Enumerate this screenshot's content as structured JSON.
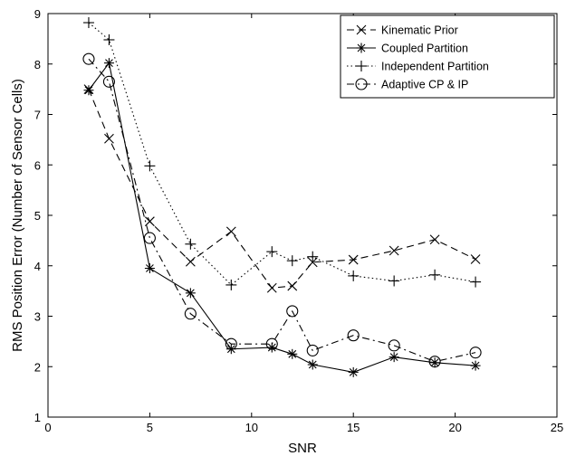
{
  "chart_data": {
    "type": "line",
    "title": "",
    "xlabel": "SNR",
    "ylabel": "RMS Position Error (Number of Sensor Cells)",
    "xlim": [
      0,
      25
    ],
    "ylim": [
      1,
      9
    ],
    "xticks": [
      "0",
      "5",
      "10",
      "15",
      "20",
      "25"
    ],
    "yticks": [
      "1",
      "2",
      "3",
      "4",
      "5",
      "6",
      "7",
      "8",
      "9"
    ],
    "grid": false,
    "legend_position": "top-right",
    "series": [
      {
        "name": "Kinematic Prior",
        "line_style": "dashed",
        "marker": "x",
        "x": [
          2,
          3,
          5,
          7,
          9,
          11,
          12,
          13,
          15,
          17,
          19,
          21
        ],
        "y": [
          7.5,
          6.52,
          4.88,
          4.08,
          4.68,
          3.56,
          3.6,
          4.07,
          4.12,
          4.3,
          4.52,
          4.13
        ]
      },
      {
        "name": "Coupled Partition",
        "line_style": "solid",
        "marker": "asterisk",
        "x": [
          2,
          3,
          5,
          7,
          9,
          11,
          12,
          13,
          15,
          17,
          19,
          21
        ],
        "y": [
          7.48,
          8.02,
          3.95,
          3.46,
          2.35,
          2.38,
          2.25,
          2.04,
          1.89,
          2.19,
          2.08,
          2.02
        ]
      },
      {
        "name": "Independent Partition",
        "line_style": "dotted",
        "marker": "plus",
        "x": [
          2,
          3,
          5,
          7,
          9,
          11,
          12,
          13,
          15,
          17,
          19,
          21
        ],
        "y": [
          8.82,
          8.48,
          5.98,
          4.43,
          3.62,
          4.28,
          4.1,
          4.18,
          3.8,
          3.7,
          3.82,
          3.68
        ]
      },
      {
        "name": "Adaptive CP & IP",
        "line_style": "dashdot",
        "marker": "circle",
        "x": [
          2,
          3,
          5,
          7,
          9,
          11,
          12,
          13,
          15,
          17,
          19,
          21
        ],
        "y": [
          8.1,
          7.65,
          4.55,
          3.05,
          2.45,
          2.45,
          3.1,
          2.32,
          2.62,
          2.42,
          2.1,
          2.28
        ]
      }
    ]
  }
}
